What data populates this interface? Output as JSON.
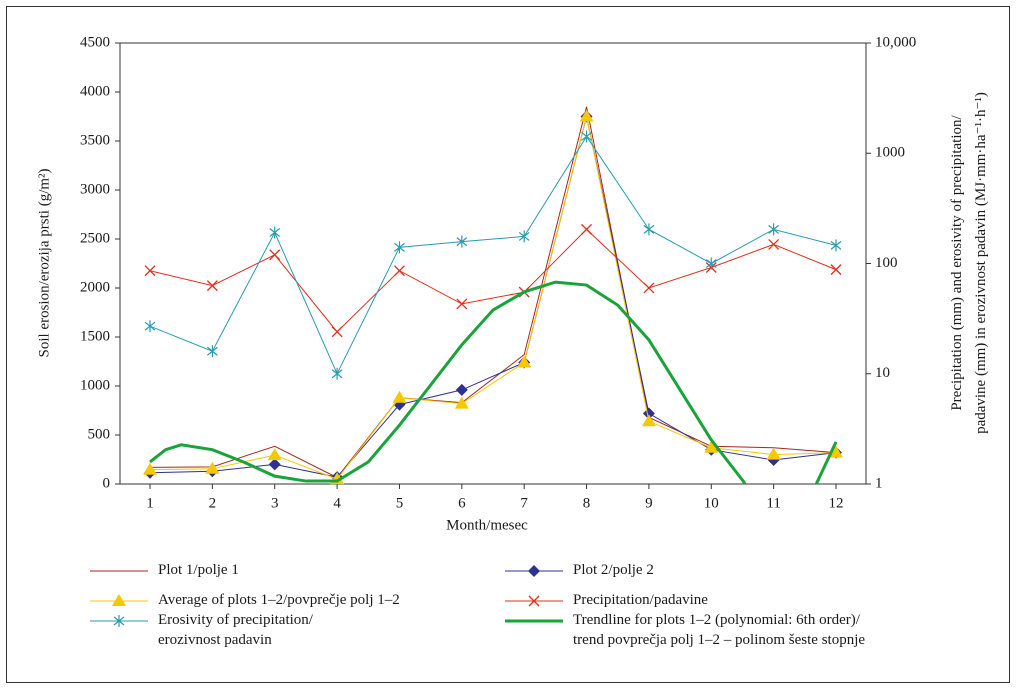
{
  "chart_data": {
    "type": "line",
    "y_label": "Soil erosion/erozija prsti (g/m²)",
    "y2_label": "Precipitation (mm) and erosivity of precipitation/\npadavine (mm) in erozivnost padavin (MJ·mm·ha⁻¹·h⁻¹)",
    "x_label": "Month/mesec",
    "categories": [
      "1",
      "2",
      "3",
      "4",
      "5",
      "6",
      "7",
      "8",
      "9",
      "10",
      "11",
      "12"
    ],
    "ylim": [
      0,
      4500
    ],
    "yticks": [
      0,
      500,
      1000,
      1500,
      2000,
      2500,
      3000,
      3500,
      4000,
      4500
    ],
    "y2lim": [
      1,
      10000
    ],
    "y2scale": "log",
    "y2ticks": [
      1,
      10,
      100,
      1000,
      {
        "value": 10000,
        "label": "10,000"
      }
    ],
    "series": [
      {
        "name": "Plot 1/polje 1",
        "color": "#a3271e",
        "marker": "none",
        "values": [
          170,
          175,
          385,
          65,
          880,
          830,
          1320,
          3850,
          680,
          385,
          370,
          320
        ]
      },
      {
        "name": "Plot 2/polje 2",
        "color": "#2e3192",
        "marker": "diamond",
        "values": [
          115,
          130,
          200,
          70,
          810,
          960,
          1240,
          3750,
          720,
          350,
          245,
          320
        ]
      },
      {
        "name": "Average of plots 1–2/povprečje polj 1–2",
        "color": "#f5c800",
        "marker": "triangle",
        "values": [
          145,
          155,
          295,
          50,
          880,
          820,
          1240,
          3750,
          640,
          370,
          300,
          320
        ]
      },
      {
        "name": "Precipitation/padavine",
        "color": "#e0301e",
        "marker": "x",
        "axis": "y2",
        "values": [
          86,
          63,
          120,
          24,
          86,
          43,
          55,
          204,
          60,
          92,
          149,
          88
        ]
      },
      {
        "name": "Erosivity of precipitation/\nerozivnost padavin",
        "color": "#2a9bb0",
        "marker": "asterisk",
        "axis": "y2",
        "values": [
          27,
          16,
          191,
          10,
          140,
          158,
          176,
          1420,
          204,
          100,
          204,
          146
        ]
      },
      {
        "name": "Trendline for plots 1–2 (polynomial: 6th order)/\ntrend povprečja polj 1–2 – polinom šeste stopnje",
        "color": "#1aa33a",
        "marker": "none",
        "width": 3,
        "x": [
          1,
          1.25,
          1.5,
          2,
          2.5,
          3,
          3.5,
          4,
          4.5,
          5,
          5.5,
          6,
          6.5,
          7,
          7.5,
          8,
          8.5,
          9,
          9.5,
          10,
          10.5,
          11,
          11.5,
          12
        ],
        "values": [
          225,
          350,
          400,
          350,
          225,
          80,
          30,
          30,
          225,
          600,
          1010,
          1420,
          1775,
          1960,
          2060,
          2030,
          1825,
          1470,
          960,
          450,
          40,
          -420,
          -250,
          430
        ]
      }
    ]
  }
}
